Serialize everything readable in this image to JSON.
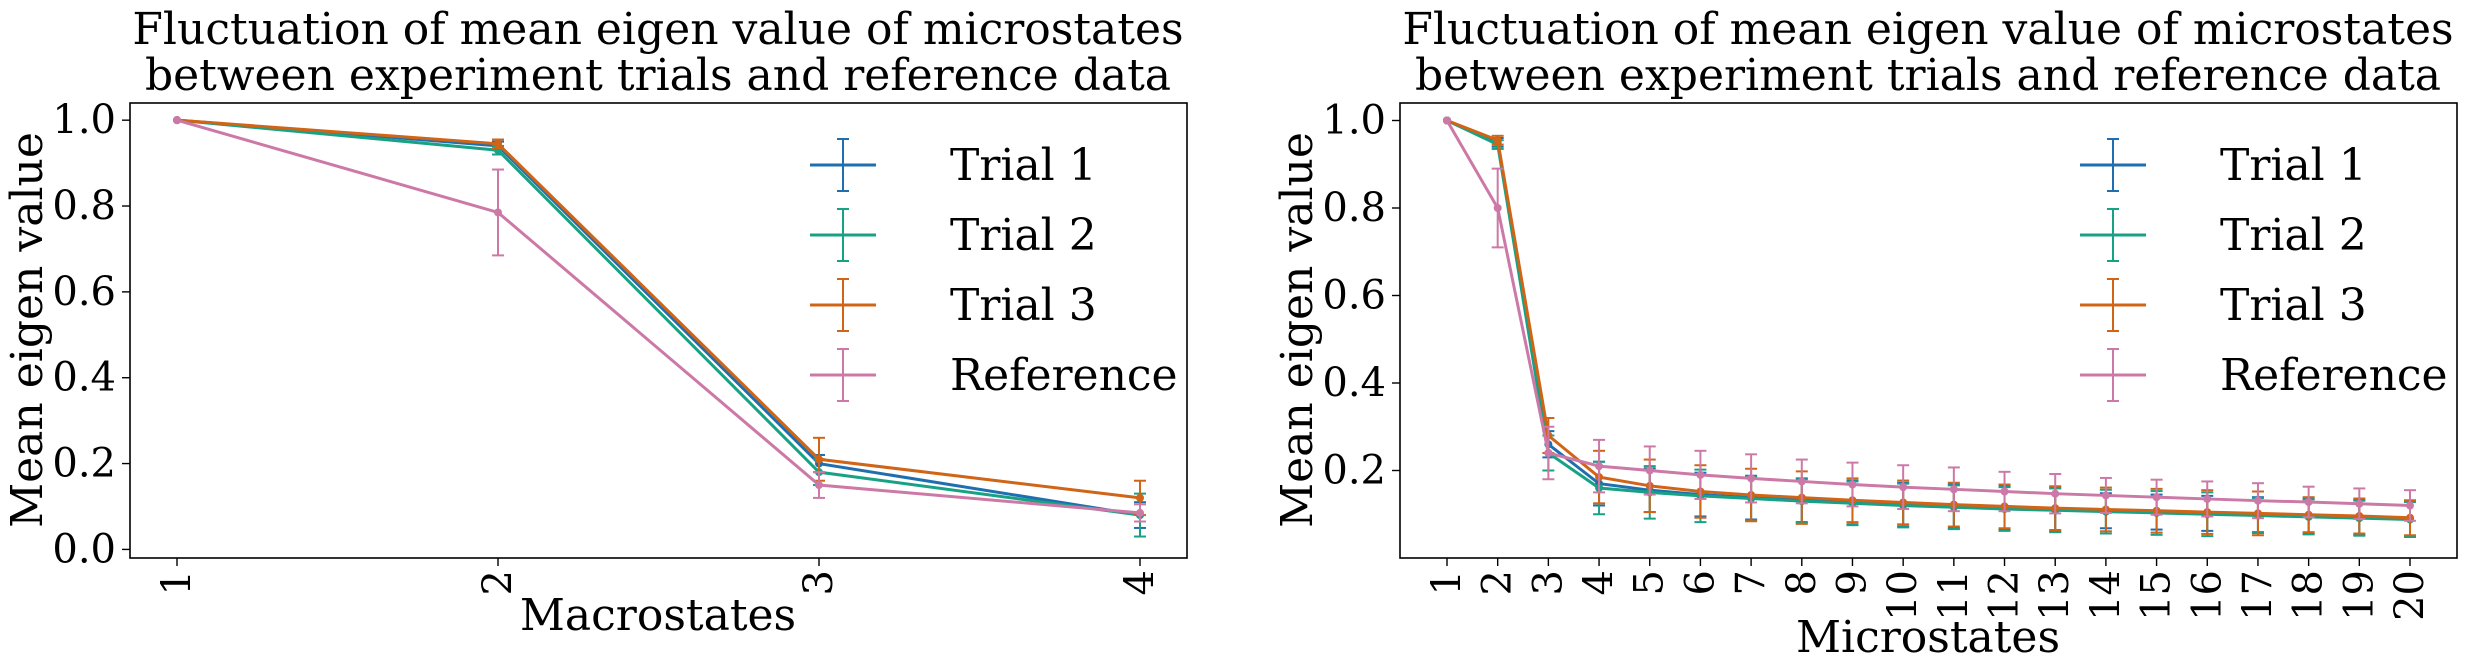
{
  "colors": {
    "trial1": "#1f6fb0",
    "trial2": "#17a286",
    "trial3": "#d06417",
    "reference": "#cc79a7"
  },
  "chart_data": [
    {
      "type": "line",
      "title": [
        "Fluctuation of mean eigen value of microstates",
        "between experiment trials and reference data"
      ],
      "xlabel": "Macrostates",
      "ylabel": "Mean eigen value",
      "categories": [
        "1",
        "2",
        "3",
        "4"
      ],
      "yticks": [
        "0.0",
        "0.2",
        "0.4",
        "0.6",
        "0.8",
        "1.0"
      ],
      "ylim": [
        -0.02,
        1.04
      ],
      "legend_position": "top-right",
      "series": [
        {
          "name": "Trial 1",
          "color_key": "trial1",
          "values": [
            1.0,
            0.94,
            0.2,
            0.08
          ],
          "errors": [
            0.0,
            0.01,
            0.02,
            0.03
          ]
        },
        {
          "name": "Trial 2",
          "color_key": "trial2",
          "values": [
            1.0,
            0.93,
            0.18,
            0.08
          ],
          "errors": [
            0.0,
            0.01,
            0.03,
            0.05
          ]
        },
        {
          "name": "Trial 3",
          "color_key": "trial3",
          "values": [
            1.0,
            0.945,
            0.21,
            0.12
          ],
          "errors": [
            0.0,
            0.01,
            0.05,
            0.04
          ]
        },
        {
          "name": "Reference",
          "color_key": "reference",
          "values": [
            1.0,
            0.785,
            0.15,
            0.085
          ],
          "errors": [
            0.0,
            0.1,
            0.03,
            0.02
          ]
        }
      ]
    },
    {
      "type": "line",
      "title": [
        "Fluctuation of mean eigen value of microstates",
        "between experiment trials and reference data"
      ],
      "xlabel": "Microstates",
      "ylabel": "Mean eigen value",
      "categories": [
        "1",
        "2",
        "3",
        "4",
        "5",
        "6",
        "7",
        "8",
        "9",
        "10",
        "11",
        "12",
        "13",
        "14",
        "15",
        "16",
        "17",
        "18",
        "19",
        "20"
      ],
      "yticks": [
        "0.2",
        "0.4",
        "0.6",
        "0.8",
        "1.0"
      ],
      "ylim": [
        0.0,
        1.04
      ],
      "legend_position": "top-right",
      "series": [
        {
          "name": "Trial 1",
          "color_key": "trial1",
          "values": [
            1.0,
            0.95,
            0.26,
            0.17,
            0.155,
            0.145,
            0.138,
            0.132,
            0.127,
            0.122,
            0.118,
            0.114,
            0.111,
            0.108,
            0.105,
            0.102,
            0.099,
            0.096,
            0.093,
            0.09
          ],
          "errors": [
            0.0,
            0.01,
            0.03,
            0.05,
            0.05,
            0.05,
            0.05,
            0.05,
            0.05,
            0.05,
            0.05,
            0.05,
            0.05,
            0.04,
            0.04,
            0.04,
            0.04,
            0.04,
            0.04,
            0.04
          ]
        },
        {
          "name": "Trial 2",
          "color_key": "trial2",
          "values": [
            1.0,
            0.945,
            0.24,
            0.16,
            0.15,
            0.142,
            0.136,
            0.13,
            0.125,
            0.12,
            0.116,
            0.112,
            0.109,
            0.106,
            0.103,
            0.1,
            0.097,
            0.094,
            0.091,
            0.088
          ],
          "errors": [
            0.0,
            0.01,
            0.04,
            0.06,
            0.06,
            0.06,
            0.05,
            0.05,
            0.05,
            0.05,
            0.05,
            0.05,
            0.05,
            0.05,
            0.05,
            0.05,
            0.04,
            0.04,
            0.04,
            0.04
          ]
        },
        {
          "name": "Trial 3",
          "color_key": "trial3",
          "values": [
            1.0,
            0.955,
            0.28,
            0.185,
            0.165,
            0.152,
            0.144,
            0.138,
            0.132,
            0.127,
            0.122,
            0.118,
            0.114,
            0.111,
            0.108,
            0.105,
            0.102,
            0.099,
            0.096,
            0.092
          ],
          "errors": [
            0.0,
            0.01,
            0.04,
            0.06,
            0.06,
            0.06,
            0.06,
            0.06,
            0.05,
            0.05,
            0.05,
            0.05,
            0.05,
            0.05,
            0.05,
            0.05,
            0.05,
            0.04,
            0.04,
            0.04
          ]
        },
        {
          "name": "Reference",
          "color_key": "reference",
          "values": [
            1.0,
            0.8,
            0.24,
            0.21,
            0.2,
            0.19,
            0.182,
            0.175,
            0.168,
            0.162,
            0.157,
            0.152,
            0.147,
            0.143,
            0.139,
            0.135,
            0.131,
            0.128,
            0.124,
            0.12
          ],
          "errors": [
            0.0,
            0.09,
            0.06,
            0.06,
            0.055,
            0.055,
            0.055,
            0.05,
            0.05,
            0.05,
            0.05,
            0.045,
            0.045,
            0.04,
            0.04,
            0.04,
            0.04,
            0.035,
            0.035,
            0.035
          ]
        }
      ]
    }
  ]
}
